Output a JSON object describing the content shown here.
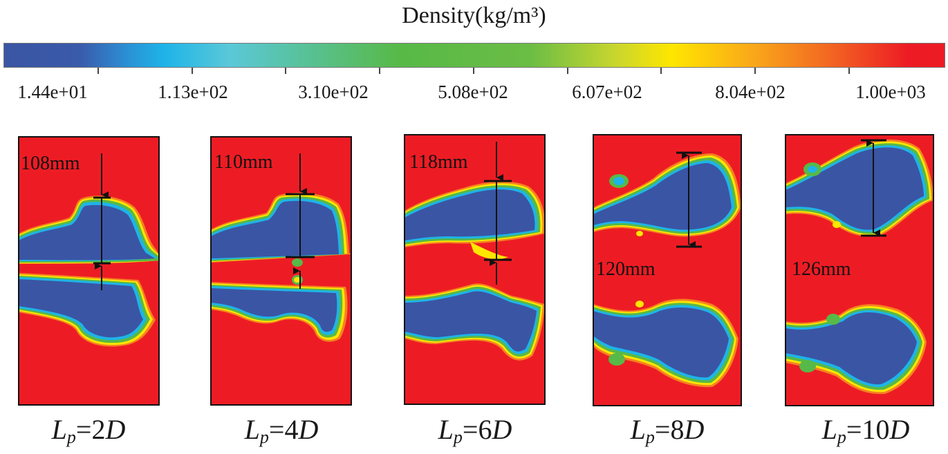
{
  "figure": {
    "colorbar_title": "Density(kg/m³)",
    "colorbar_ticks": [
      "1.44e+01",
      "1.13e+02",
      "3.10e+02",
      "5.08e+02",
      "6.07e+02",
      "8.04e+02",
      "1.00e+03"
    ],
    "colors": {
      "liquid": "#ed1c24",
      "vapor": "#3a55a4",
      "cyan": "#1eb4e8",
      "green": "#57b947",
      "yellow": "#ffe600",
      "orange": "#f58220"
    },
    "panels": [
      {
        "id": "lp-2d",
        "measure_label": "108mm",
        "caption_italic_L": "L",
        "caption_sub": "p",
        "caption_eq": "=2",
        "caption_italic_D": "D"
      },
      {
        "id": "lp-4d",
        "measure_label": "110mm",
        "caption_italic_L": "L",
        "caption_sub": "p",
        "caption_eq": "=4",
        "caption_italic_D": "D"
      },
      {
        "id": "lp-6d",
        "measure_label": "118mm",
        "caption_italic_L": "L",
        "caption_sub": "p",
        "caption_eq": "=6",
        "caption_italic_D": "D"
      },
      {
        "id": "lp-8d",
        "measure_label": "120mm",
        "caption_italic_L": "L",
        "caption_sub": "p",
        "caption_eq": "=8",
        "caption_italic_D": "D"
      },
      {
        "id": "lp-10d",
        "measure_label": "126mm",
        "caption_italic_L": "L",
        "caption_sub": "p",
        "caption_eq": "=10",
        "caption_italic_D": "D"
      }
    ]
  }
}
